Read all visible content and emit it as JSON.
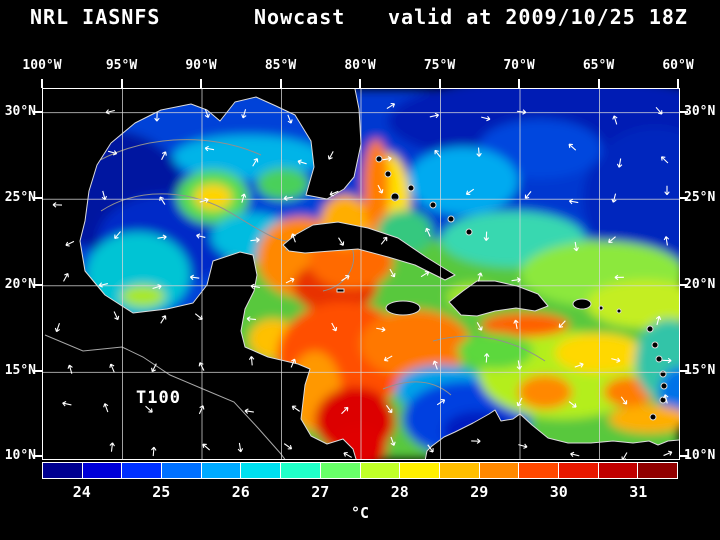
{
  "header": {
    "model": "NRL IASNFS",
    "product": "Nowcast",
    "valid": "valid at 2009/10/25 18Z"
  },
  "map": {
    "lon_ticks": [
      "100°W",
      "95°W",
      "90°W",
      "85°W",
      "80°W",
      "75°W",
      "70°W",
      "65°W",
      "60°W"
    ],
    "lat_ticks": [
      "30°N",
      "25°N",
      "20°N",
      "15°N",
      "10°N"
    ],
    "field_label": "T100"
  },
  "colorbar": {
    "tick_labels": [
      "24",
      "25",
      "26",
      "27",
      "28",
      "29",
      "30",
      "31"
    ],
    "unit": "°C",
    "colors": [
      "#000090",
      "#0000D8",
      "#0030FF",
      "#0070FF",
      "#00AAFF",
      "#00E0F0",
      "#20FFC8",
      "#68FF68",
      "#C0FF28",
      "#FFF000",
      "#FFBE00",
      "#FF8800",
      "#FF4800",
      "#E81800",
      "#C00000",
      "#900000"
    ]
  }
}
